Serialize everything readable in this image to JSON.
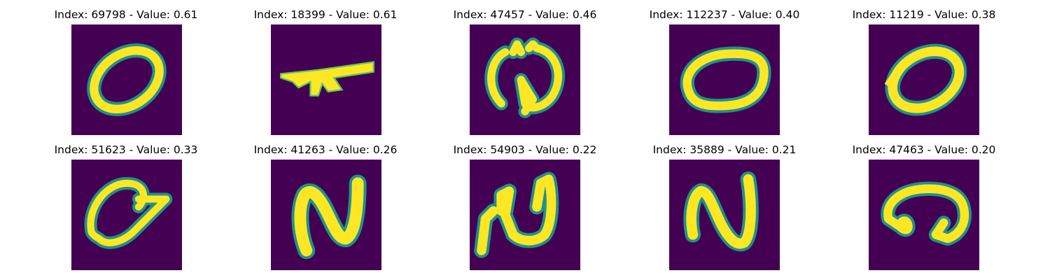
{
  "colors": {
    "background": "#440154",
    "foreground": "#fde725",
    "edge": "#21918c",
    "edge_light": "#5ec962"
  },
  "items": [
    {
      "label": "Index: 69798 - Value: 0.61",
      "glyph": "digit-zero-oval"
    },
    {
      "label": "Index: 18399 - Value: 0.61",
      "glyph": "horizontal-stroke"
    },
    {
      "label": "Index: 47457 - Value: 0.46",
      "glyph": "looped-circle"
    },
    {
      "label": "Index: 112237 - Value: 0.40",
      "glyph": "digit-zero-flat"
    },
    {
      "label": "Index: 11219 - Value: 0.38",
      "glyph": "digit-zero-slanted"
    },
    {
      "label": "Index: 51623 - Value: 0.33",
      "glyph": "digit-zero-tailed"
    },
    {
      "label": "Index: 41263 - Value: 0.26",
      "glyph": "digit-two-n"
    },
    {
      "label": "Index: 54903 - Value: 0.22",
      "glyph": "digit-n-loop"
    },
    {
      "label": "Index: 35889 - Value: 0.21",
      "glyph": "digit-two-n-thin"
    },
    {
      "label": "Index: 47463 - Value: 0.20",
      "glyph": "curl-stroke"
    }
  ]
}
